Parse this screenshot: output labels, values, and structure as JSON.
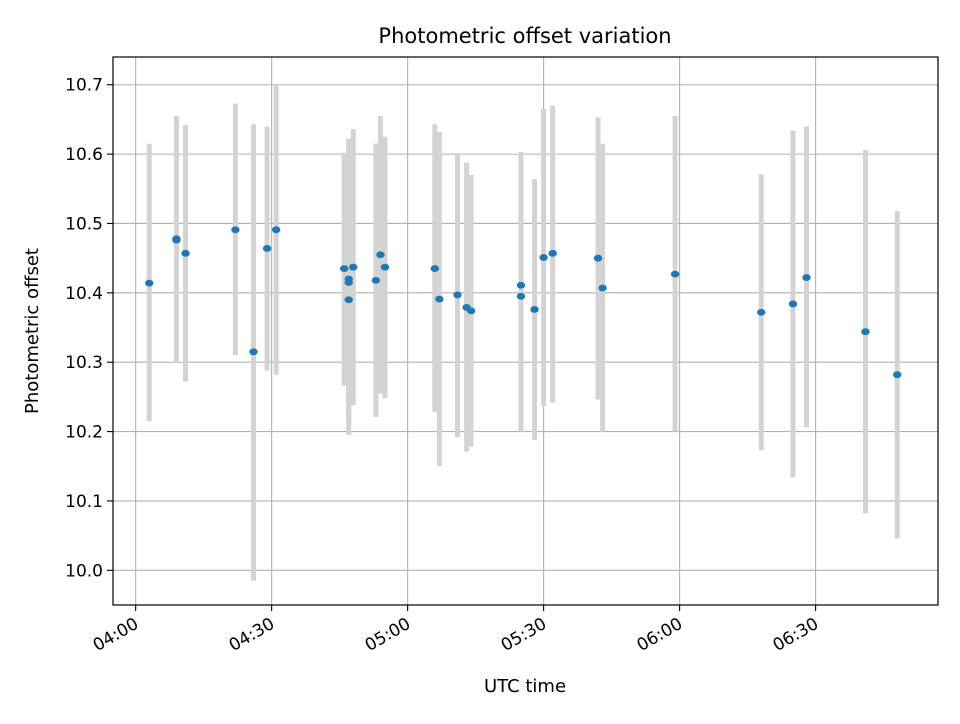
{
  "chart_data": {
    "type": "scatter",
    "title": "Photometric offset variation",
    "xlabel": "UTC time",
    "ylabel": "Photometric offset",
    "x_ticks": [
      "04:00",
      "04:30",
      "05:00",
      "05:30",
      "06:00",
      "06:30"
    ],
    "y_ticks": [
      "10.0",
      "10.1",
      "10.2",
      "10.3",
      "10.4",
      "10.5",
      "10.6",
      "10.7"
    ],
    "xlim": [
      "03:55",
      "06:57"
    ],
    "ylim": [
      9.95,
      10.74
    ],
    "grid": true,
    "series": [
      {
        "point_color": "#1f77b4",
        "errorbar_color": "#d3d3d3",
        "points": [
          {
            "x": "04:03",
            "y": 10.414,
            "lo": 10.215,
            "hi": 10.615
          },
          {
            "x": "04:09",
            "y": 10.478,
            "lo": 10.3,
            "hi": 10.655
          },
          {
            "x": "04:09",
            "y": 10.476,
            "lo": 10.3,
            "hi": 10.652
          },
          {
            "x": "04:11",
            "y": 10.457,
            "lo": 10.272,
            "hi": 10.642
          },
          {
            "x": "04:22",
            "y": 10.491,
            "lo": 10.31,
            "hi": 10.673
          },
          {
            "x": "04:26",
            "y": 10.315,
            "lo": 9.985,
            "hi": 10.643
          },
          {
            "x": "04:29",
            "y": 10.464,
            "lo": 10.288,
            "hi": 10.64
          },
          {
            "x": "04:31",
            "y": 10.491,
            "lo": 10.282,
            "hi": 10.7
          },
          {
            "x": "04:46",
            "y": 10.435,
            "lo": 10.266,
            "hi": 10.602
          },
          {
            "x": "04:47",
            "y": 10.39,
            "lo": 10.195,
            "hi": 10.585
          },
          {
            "x": "04:47",
            "y": 10.415,
            "lo": 10.21,
            "hi": 10.615
          },
          {
            "x": "04:47",
            "y": 10.42,
            "lo": 10.218,
            "hi": 10.622
          },
          {
            "x": "04:48",
            "y": 10.437,
            "lo": 10.238,
            "hi": 10.636
          },
          {
            "x": "04:53",
            "y": 10.418,
            "lo": 10.221,
            "hi": 10.615
          },
          {
            "x": "04:54",
            "y": 10.455,
            "lo": 10.255,
            "hi": 10.655
          },
          {
            "x": "04:55",
            "y": 10.437,
            "lo": 10.248,
            "hi": 10.625
          },
          {
            "x": "05:06",
            "y": 10.435,
            "lo": 10.228,
            "hi": 10.643
          },
          {
            "x": "05:07",
            "y": 10.391,
            "lo": 10.15,
            "hi": 10.632
          },
          {
            "x": "05:11",
            "y": 10.397,
            "lo": 10.192,
            "hi": 10.6
          },
          {
            "x": "05:13",
            "y": 10.379,
            "lo": 10.171,
            "hi": 10.588
          },
          {
            "x": "05:14",
            "y": 10.374,
            "lo": 10.178,
            "hi": 10.57
          },
          {
            "x": "05:25",
            "y": 10.395,
            "lo": 10.2,
            "hi": 10.6
          },
          {
            "x": "05:25",
            "y": 10.411,
            "lo": 10.22,
            "hi": 10.603
          },
          {
            "x": "05:28",
            "y": 10.376,
            "lo": 10.188,
            "hi": 10.564
          },
          {
            "x": "05:30",
            "y": 10.451,
            "lo": 10.237,
            "hi": 10.665
          },
          {
            "x": "05:32",
            "y": 10.457,
            "lo": 10.242,
            "hi": 10.67
          },
          {
            "x": "05:42",
            "y": 10.45,
            "lo": 10.246,
            "hi": 10.653
          },
          {
            "x": "05:43",
            "y": 10.407,
            "lo": 10.2,
            "hi": 10.615
          },
          {
            "x": "05:59",
            "y": 10.427,
            "lo": 10.2,
            "hi": 10.655
          },
          {
            "x": "06:18",
            "y": 10.372,
            "lo": 10.173,
            "hi": 10.571
          },
          {
            "x": "06:25",
            "y": 10.384,
            "lo": 10.134,
            "hi": 10.634
          },
          {
            "x": "06:28",
            "y": 10.422,
            "lo": 10.206,
            "hi": 10.64
          },
          {
            "x": "06:41",
            "y": 10.344,
            "lo": 10.082,
            "hi": 10.606
          },
          {
            "x": "06:48",
            "y": 10.282,
            "lo": 10.046,
            "hi": 10.518
          }
        ]
      }
    ]
  }
}
